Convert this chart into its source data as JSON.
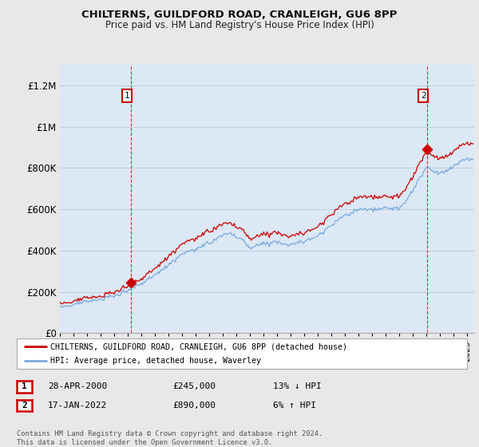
{
  "title": "CHILTERNS, GUILDFORD ROAD, CRANLEIGH, GU6 8PP",
  "subtitle": "Price paid vs. HM Land Registry's House Price Index (HPI)",
  "ylim": [
    0,
    1300000
  ],
  "yticks": [
    0,
    200000,
    400000,
    600000,
    800000,
    1000000,
    1200000
  ],
  "ytick_labels": [
    "£0",
    "£200K",
    "£400K",
    "£600K",
    "£800K",
    "£1M",
    "£1.2M"
  ],
  "sale1_year": 2000.25,
  "sale1_price": 245000,
  "sale2_year": 2022.05,
  "sale2_price": 890000,
  "legend1": "CHILTERNS, GUILDFORD ROAD, CRANLEIGH, GU6 8PP (detached house)",
  "legend2": "HPI: Average price, detached house, Waverley",
  "table1_date": "28-APR-2000",
  "table1_price": "£245,000",
  "table1_hpi": "13% ↓ HPI",
  "table2_date": "17-JAN-2022",
  "table2_price": "£890,000",
  "table2_hpi": "6% ↑ HPI",
  "footer": "Contains HM Land Registry data © Crown copyright and database right 2024.\nThis data is licensed under the Open Government Licence v3.0.",
  "line_color_sale": "#cc0000",
  "line_color_hpi": "#7aaadd",
  "bg_color": "#e8e8e8",
  "plot_bg": "#dce8f5",
  "grid_color": "#c0ccd8",
  "vline_color": "#cc0000"
}
